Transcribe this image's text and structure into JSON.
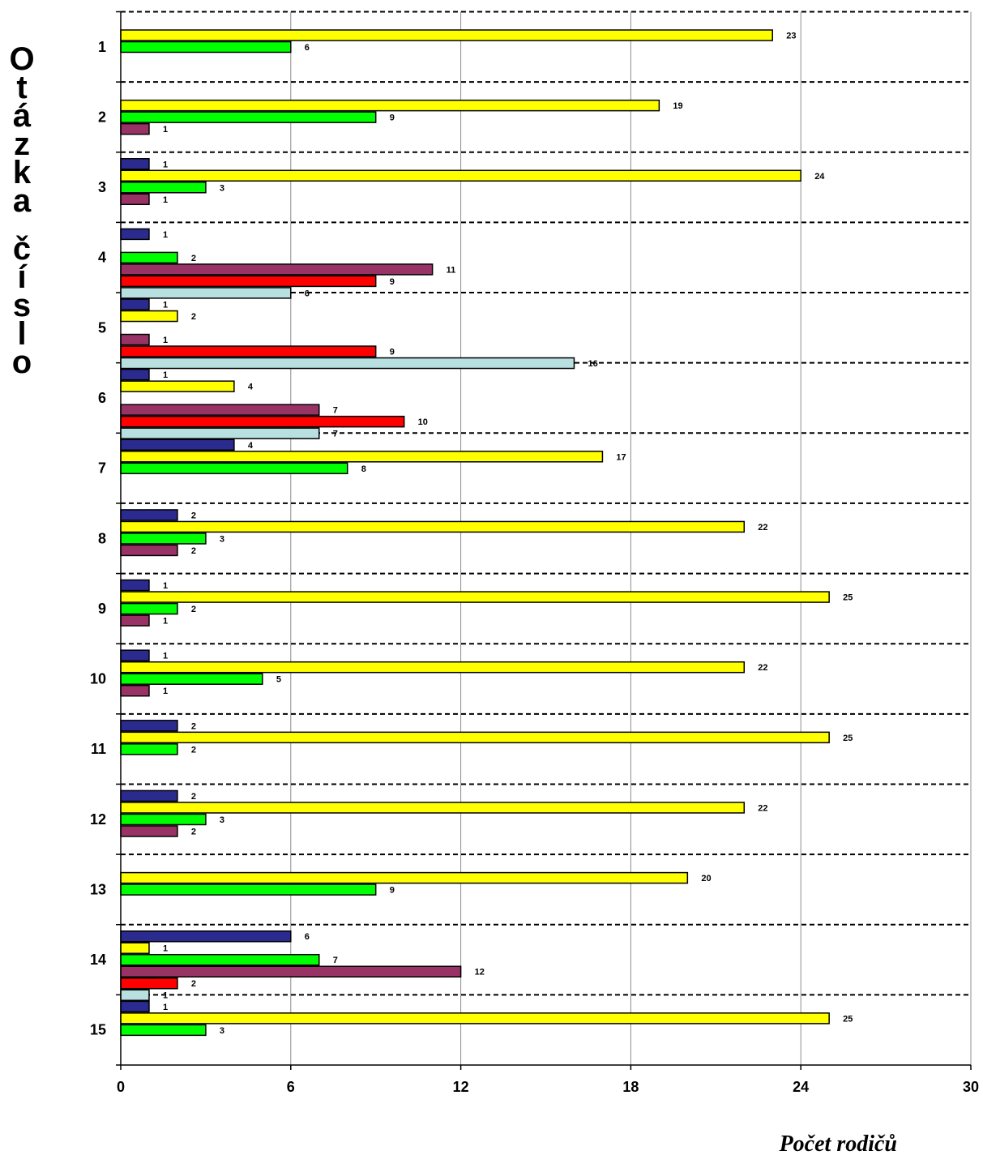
{
  "chart_data": {
    "type": "bar",
    "orientation": "horizontal",
    "xlabel": "Počet rodičů",
    "ylabel": "Otázka číslo",
    "xlim": [
      0,
      30
    ],
    "xticks": [
      0,
      6,
      12,
      18,
      24,
      30
    ],
    "grid": true,
    "categories": [
      "1",
      "2",
      "3",
      "4",
      "5",
      "6",
      "7",
      "8",
      "9",
      "10",
      "11",
      "12",
      "13",
      "14",
      "15"
    ],
    "series_colors": [
      "#2b2b8f",
      "#ffff00",
      "#00ff00",
      "#993366",
      "#ff0000",
      "#b8e0e0"
    ],
    "groups": [
      [
        null,
        23,
        6,
        null,
        null,
        null
      ],
      [
        null,
        19,
        9,
        1,
        null,
        null
      ],
      [
        1,
        24,
        3,
        1,
        null,
        null
      ],
      [
        1,
        null,
        2,
        11,
        9,
        6
      ],
      [
        1,
        2,
        null,
        1,
        9,
        16
      ],
      [
        1,
        4,
        null,
        7,
        10,
        7
      ],
      [
        4,
        17,
        8,
        null,
        null,
        null
      ],
      [
        2,
        22,
        3,
        2,
        null,
        null
      ],
      [
        1,
        25,
        2,
        1,
        null,
        null
      ],
      [
        1,
        22,
        5,
        1,
        null,
        null
      ],
      [
        2,
        25,
        2,
        null,
        null,
        null
      ],
      [
        2,
        22,
        3,
        2,
        null,
        null
      ],
      [
        null,
        20,
        9,
        null,
        null,
        null
      ],
      [
        6,
        1,
        7,
        12,
        2,
        1
      ],
      [
        1,
        25,
        3,
        null,
        null,
        null
      ]
    ]
  }
}
